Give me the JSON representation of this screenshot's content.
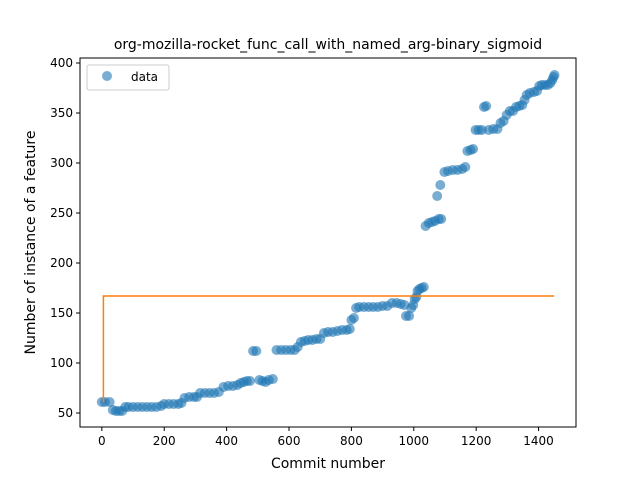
{
  "chart_data": {
    "type": "scatter",
    "title": "org-mozilla-rocket_func_call_with_named_arg-binary_sigmoid",
    "xlabel": "Commit number",
    "ylabel": "Number of instance of a feature",
    "xlim": [
      -70,
      1520
    ],
    "ylim": [
      36,
      405
    ],
    "xticks": [
      0,
      200,
      400,
      600,
      800,
      1000,
      1200,
      1400
    ],
    "yticks": [
      50,
      100,
      150,
      200,
      250,
      300,
      350,
      400
    ],
    "grid": false,
    "legend": {
      "placement": "top-left",
      "entries": [
        "data"
      ]
    },
    "colors": {
      "data": "#1f77b4",
      "fit": "#ff7f0e"
    },
    "series": [
      {
        "name": "data",
        "kind": "scatter",
        "points": [
          [
            0,
            61
          ],
          [
            10,
            61
          ],
          [
            25,
            61
          ],
          [
            35,
            53
          ],
          [
            45,
            52
          ],
          [
            55,
            52
          ],
          [
            65,
            52
          ],
          [
            75,
            56
          ],
          [
            85,
            56
          ],
          [
            100,
            56
          ],
          [
            115,
            56
          ],
          [
            130,
            56
          ],
          [
            145,
            56
          ],
          [
            160,
            56
          ],
          [
            175,
            56
          ],
          [
            190,
            57
          ],
          [
            200,
            59
          ],
          [
            215,
            59
          ],
          [
            230,
            59
          ],
          [
            245,
            59
          ],
          [
            255,
            60
          ],
          [
            265,
            65
          ],
          [
            280,
            66
          ],
          [
            295,
            66
          ],
          [
            305,
            66
          ],
          [
            315,
            70
          ],
          [
            330,
            70
          ],
          [
            345,
            70
          ],
          [
            360,
            70
          ],
          [
            375,
            71
          ],
          [
            390,
            76
          ],
          [
            405,
            77
          ],
          [
            420,
            77
          ],
          [
            435,
            78
          ],
          [
            445,
            80
          ],
          [
            455,
            81
          ],
          [
            465,
            82
          ],
          [
            475,
            82
          ],
          [
            485,
            112
          ],
          [
            495,
            112
          ],
          [
            505,
            83
          ],
          [
            515,
            82
          ],
          [
            525,
            81
          ],
          [
            535,
            83
          ],
          [
            548,
            84
          ],
          [
            560,
            113
          ],
          [
            575,
            113
          ],
          [
            590,
            113
          ],
          [
            605,
            113
          ],
          [
            618,
            113
          ],
          [
            628,
            116
          ],
          [
            638,
            121
          ],
          [
            650,
            122
          ],
          [
            662,
            123
          ],
          [
            675,
            123
          ],
          [
            688,
            124
          ],
          [
            700,
            124
          ],
          [
            712,
            130
          ],
          [
            725,
            131
          ],
          [
            740,
            131
          ],
          [
            755,
            132
          ],
          [
            770,
            133
          ],
          [
            785,
            133
          ],
          [
            795,
            134
          ],
          [
            800,
            143
          ],
          [
            808,
            145
          ],
          [
            815,
            155
          ],
          [
            825,
            156
          ],
          [
            840,
            156
          ],
          [
            855,
            156
          ],
          [
            870,
            156
          ],
          [
            885,
            156
          ],
          [
            900,
            157
          ],
          [
            915,
            157
          ],
          [
            930,
            160
          ],
          [
            945,
            160
          ],
          [
            958,
            159
          ],
          [
            970,
            158
          ],
          [
            975,
            147
          ],
          [
            985,
            147
          ],
          [
            992,
            155
          ],
          [
            998,
            158
          ],
          [
            1003,
            164
          ],
          [
            1008,
            166
          ],
          [
            1012,
            172
          ],
          [
            1018,
            174
          ],
          [
            1025,
            175
          ],
          [
            1032,
            176
          ],
          [
            1038,
            237
          ],
          [
            1048,
            240
          ],
          [
            1058,
            241
          ],
          [
            1068,
            242
          ],
          [
            1080,
            244
          ],
          [
            1088,
            244
          ],
          [
            1075,
            267
          ],
          [
            1085,
            278
          ],
          [
            1098,
            291
          ],
          [
            1110,
            292
          ],
          [
            1125,
            293
          ],
          [
            1140,
            293
          ],
          [
            1155,
            294
          ],
          [
            1165,
            296
          ],
          [
            1172,
            312
          ],
          [
            1182,
            313
          ],
          [
            1190,
            314
          ],
          [
            1198,
            333
          ],
          [
            1208,
            333
          ],
          [
            1218,
            333
          ],
          [
            1225,
            356
          ],
          [
            1232,
            357
          ],
          [
            1240,
            333
          ],
          [
            1255,
            334
          ],
          [
            1268,
            334
          ],
          [
            1278,
            340
          ],
          [
            1288,
            342
          ],
          [
            1298,
            348
          ],
          [
            1308,
            352
          ],
          [
            1318,
            352
          ],
          [
            1328,
            356
          ],
          [
            1338,
            357
          ],
          [
            1348,
            358
          ],
          [
            1355,
            363
          ],
          [
            1362,
            368
          ],
          [
            1372,
            370
          ],
          [
            1385,
            371
          ],
          [
            1395,
            372
          ],
          [
            1402,
            377
          ],
          [
            1410,
            378
          ],
          [
            1420,
            378
          ],
          [
            1430,
            378
          ],
          [
            1438,
            380
          ],
          [
            1444,
            383
          ],
          [
            1448,
            386
          ],
          [
            1451,
            388
          ]
        ]
      },
      {
        "name": "",
        "kind": "line",
        "points": [
          [
            5,
            61
          ],
          [
            5,
            167
          ],
          [
            1450,
            167
          ]
        ]
      }
    ]
  }
}
